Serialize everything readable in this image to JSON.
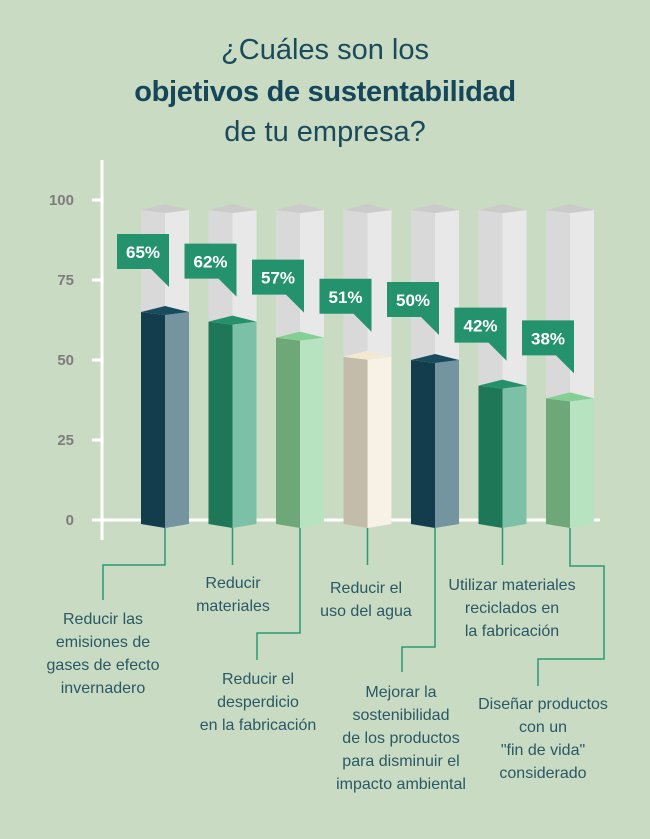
{
  "title": {
    "line1": "¿Cuáles son los",
    "line2": "objetivos de sustentabilidad",
    "line3": "de tu empresa?"
  },
  "colors": {
    "background": "#c9dbc2",
    "title": "#15465a",
    "label_box": "#23926d",
    "axis": "#ffffff",
    "leader_line": "#2a9a72",
    "bar_back_left": "#d9d9d9",
    "bar_back_right": "#e8e8e8",
    "bar_back_top": "#cbcbcb"
  },
  "chart_data": {
    "type": "bar",
    "title": "¿Cuáles son los objetivos de sustentabilidad de tu empresa?",
    "xlabel": "",
    "ylabel": "",
    "ylim": [
      0,
      100
    ],
    "yticks": [
      "0",
      "25",
      "50",
      "75",
      "100"
    ],
    "ytick_values": [
      0,
      25,
      50,
      75,
      100
    ],
    "grid": false,
    "legend": "none",
    "categories": [
      "Reducir las emisiones de gases de efecto invernadero",
      "Reducir materiales",
      "Reducir el desperdicio en la fabricación",
      "Reducir el uso del agua",
      "Mejorar la sostenibilidad de los productos para disminuir el impacto ambiental",
      "Utilizar materiales reciclados en la fabricación",
      "Diseñar productos con un \"fin de vida\" considerado"
    ],
    "values": [
      65,
      62,
      57,
      51,
      50,
      42,
      38
    ],
    "data_labels": [
      "65%",
      "62%",
      "57%",
      "51%",
      "50%",
      "42%",
      "38%"
    ],
    "bar_colors": [
      {
        "left": "#133c4c",
        "right": "#7494a0",
        "top": "#174c5e"
      },
      {
        "left": "#1e7857",
        "right": "#7cc0a8",
        "top": "#24916a"
      },
      {
        "left": "#6ea878",
        "right": "#b8e3c0",
        "top": "#86cf94"
      },
      {
        "left": "#c3bcab",
        "right": "#f7f1e6",
        "top": "#f3e9d3"
      },
      {
        "left": "#133c4c",
        "right": "#7494a0",
        "top": "#174c5e"
      },
      {
        "left": "#1e7857",
        "right": "#7cc0a8",
        "top": "#24916a"
      },
      {
        "left": "#6ea878",
        "right": "#b8e3c0",
        "top": "#86cf94"
      }
    ]
  },
  "category_labels": [
    [
      "Reducir las",
      "emisiones de",
      "gases de efecto",
      "invernadero"
    ],
    [
      "Reducir",
      "materiales"
    ],
    [
      "Reducir el",
      "desperdicio",
      "en la fabricación"
    ],
    [
      "Reducir el",
      "uso del agua"
    ],
    [
      "Mejorar la",
      "sostenibilidad",
      "de los productos",
      "para disminuir el",
      "impacto ambiental"
    ],
    [
      "Utilizar materiales",
      "reciclados en",
      "la fabricación"
    ],
    [
      "Diseñar productos",
      "con un",
      "\"fin de vida\"",
      "considerado"
    ]
  ]
}
